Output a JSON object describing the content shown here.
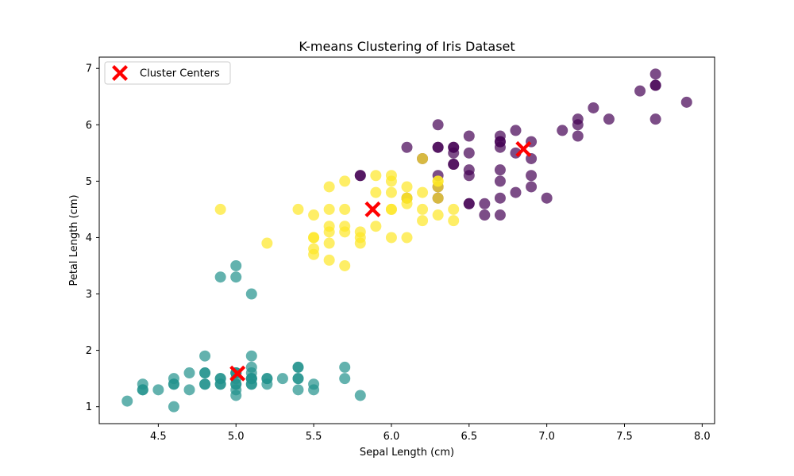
{
  "chart_data": {
    "type": "scatter",
    "title": "K-means Clustering of Iris Dataset",
    "xlabel": "Sepal Length (cm)",
    "ylabel": "Petal Length (cm)",
    "xlim": [
      4.12,
      8.08
    ],
    "ylim": [
      0.7,
      7.2
    ],
    "xticks": [
      4.5,
      5.0,
      5.5,
      6.0,
      6.5,
      7.0,
      7.5,
      8.0
    ],
    "xtick_labels": [
      "4.5",
      "5.0",
      "5.5",
      "6.0",
      "6.5",
      "7.0",
      "7.5",
      "8.0"
    ],
    "yticks": [
      1,
      2,
      3,
      4,
      5,
      6,
      7
    ],
    "ytick_labels": [
      "1",
      "2",
      "3",
      "4",
      "5",
      "6",
      "7"
    ],
    "grid": false,
    "legend": {
      "placement": "top-left",
      "entries": [
        "Cluster Centers"
      ]
    },
    "series": [
      {
        "color": "#440154",
        "points": [
          [
            6.3,
            6.0
          ],
          [
            5.8,
            5.1
          ],
          [
            7.1,
            5.9
          ],
          [
            6.3,
            5.6
          ],
          [
            6.5,
            5.8
          ],
          [
            7.6,
            6.6
          ],
          [
            7.3,
            6.3
          ],
          [
            6.7,
            5.8
          ],
          [
            7.2,
            6.1
          ],
          [
            6.5,
            5.1
          ],
          [
            6.4,
            5.3
          ],
          [
            6.8,
            5.5
          ],
          [
            5.8,
            5.1
          ],
          [
            6.4,
            5.3
          ],
          [
            6.5,
            5.5
          ],
          [
            7.7,
            6.7
          ],
          [
            7.7,
            6.9
          ],
          [
            6.9,
            5.7
          ],
          [
            7.7,
            6.7
          ],
          [
            6.7,
            5.7
          ],
          [
            7.2,
            6.0
          ],
          [
            6.4,
            5.6
          ],
          [
            7.2,
            5.8
          ],
          [
            7.4,
            6.1
          ],
          [
            7.9,
            6.4
          ],
          [
            6.4,
            5.6
          ],
          [
            6.3,
            5.1
          ],
          [
            6.1,
            5.6
          ],
          [
            7.7,
            6.1
          ],
          [
            6.3,
            5.6
          ],
          [
            6.4,
            5.5
          ],
          [
            6.9,
            5.4
          ],
          [
            6.7,
            5.6
          ],
          [
            6.9,
            5.1
          ],
          [
            6.8,
            5.9
          ],
          [
            6.7,
            5.7
          ],
          [
            6.7,
            5.2
          ],
          [
            6.5,
            5.2
          ],
          [
            6.2,
            5.4
          ],
          [
            7.0,
            4.7
          ],
          [
            6.9,
            4.9
          ],
          [
            6.6,
            4.6
          ],
          [
            6.7,
            5.0
          ],
          [
            6.7,
            4.4
          ],
          [
            6.6,
            4.4
          ],
          [
            6.8,
            4.8
          ],
          [
            6.5,
            4.6
          ],
          [
            6.3,
            4.9
          ],
          [
            6.7,
            4.7
          ],
          [
            6.5,
            4.6
          ],
          [
            6.1,
            4.7
          ],
          [
            6.3,
            4.7
          ]
        ]
      },
      {
        "color": "#21918c",
        "points": [
          [
            5.1,
            1.4
          ],
          [
            4.9,
            1.4
          ],
          [
            4.7,
            1.3
          ],
          [
            4.6,
            1.5
          ],
          [
            5.0,
            1.4
          ],
          [
            5.4,
            1.7
          ],
          [
            4.6,
            1.4
          ],
          [
            5.0,
            1.5
          ],
          [
            4.4,
            1.4
          ],
          [
            4.9,
            1.5
          ],
          [
            5.4,
            1.5
          ],
          [
            4.8,
            1.6
          ],
          [
            4.8,
            1.4
          ],
          [
            4.3,
            1.1
          ],
          [
            5.8,
            1.2
          ],
          [
            5.7,
            1.5
          ],
          [
            5.4,
            1.3
          ],
          [
            5.1,
            1.4
          ],
          [
            5.7,
            1.7
          ],
          [
            5.1,
            1.5
          ],
          [
            5.4,
            1.7
          ],
          [
            5.1,
            1.5
          ],
          [
            4.6,
            1.0
          ],
          [
            5.1,
            1.7
          ],
          [
            4.8,
            1.9
          ],
          [
            5.0,
            1.6
          ],
          [
            5.0,
            1.6
          ],
          [
            5.2,
            1.5
          ],
          [
            5.2,
            1.4
          ],
          [
            4.7,
            1.6
          ],
          [
            4.8,
            1.6
          ],
          [
            5.4,
            1.5
          ],
          [
            5.2,
            1.5
          ],
          [
            5.5,
            1.4
          ],
          [
            4.9,
            1.5
          ],
          [
            5.0,
            1.2
          ],
          [
            5.5,
            1.3
          ],
          [
            4.9,
            1.4
          ],
          [
            4.4,
            1.3
          ],
          [
            5.1,
            1.5
          ],
          [
            5.0,
            1.3
          ],
          [
            4.5,
            1.3
          ],
          [
            4.4,
            1.3
          ],
          [
            5.0,
            1.6
          ],
          [
            5.1,
            1.9
          ],
          [
            4.8,
            1.4
          ],
          [
            5.1,
            1.6
          ],
          [
            4.6,
            1.4
          ],
          [
            5.3,
            1.5
          ],
          [
            5.0,
            1.4
          ],
          [
            4.9,
            3.3
          ],
          [
            5.0,
            3.5
          ],
          [
            5.0,
            3.3
          ],
          [
            5.1,
            3.0
          ]
        ]
      },
      {
        "color": "#fde725",
        "points": [
          [
            6.0,
            5.1
          ],
          [
            5.9,
            5.1
          ],
          [
            6.1,
            4.9
          ],
          [
            6.3,
            5.0
          ],
          [
            6.3,
            4.9
          ],
          [
            6.2,
            4.8
          ],
          [
            6.0,
            4.8
          ],
          [
            6.3,
            5.0
          ],
          [
            6.0,
            5.0
          ],
          [
            4.9,
            4.5
          ],
          [
            5.4,
            4.5
          ],
          [
            5.5,
            4.4
          ],
          [
            5.6,
            4.9
          ],
          [
            5.7,
            5.0
          ],
          [
            5.7,
            4.5
          ],
          [
            5.6,
            4.5
          ],
          [
            5.6,
            4.2
          ],
          [
            5.6,
            4.1
          ],
          [
            5.7,
            4.2
          ],
          [
            5.7,
            4.1
          ],
          [
            5.5,
            4.0
          ],
          [
            5.5,
            4.0
          ],
          [
            5.2,
            3.9
          ],
          [
            5.5,
            3.8
          ],
          [
            5.5,
            3.7
          ],
          [
            5.6,
            3.6
          ],
          [
            5.6,
            3.9
          ],
          [
            5.7,
            3.5
          ],
          [
            5.8,
            4.1
          ],
          [
            5.8,
            4.0
          ],
          [
            5.8,
            3.9
          ],
          [
            5.9,
            4.2
          ],
          [
            5.9,
            4.8
          ],
          [
            6.0,
            4.5
          ],
          [
            6.0,
            4.5
          ],
          [
            6.0,
            4.0
          ],
          [
            6.1,
            4.7
          ],
          [
            6.1,
            4.6
          ],
          [
            6.1,
            4.0
          ],
          [
            6.1,
            4.7
          ],
          [
            6.2,
            4.5
          ],
          [
            6.2,
            4.3
          ],
          [
            6.3,
            4.7
          ],
          [
            6.3,
            4.4
          ],
          [
            6.4,
            4.5
          ],
          [
            6.4,
            4.3
          ],
          [
            6.2,
            5.4
          ]
        ]
      }
    ],
    "cluster_centers": {
      "label": "Cluster Centers",
      "color": "#ff0000",
      "points": [
        [
          6.85,
          5.57
        ],
        [
          5.01,
          1.59
        ],
        [
          5.88,
          4.5
        ]
      ]
    }
  }
}
